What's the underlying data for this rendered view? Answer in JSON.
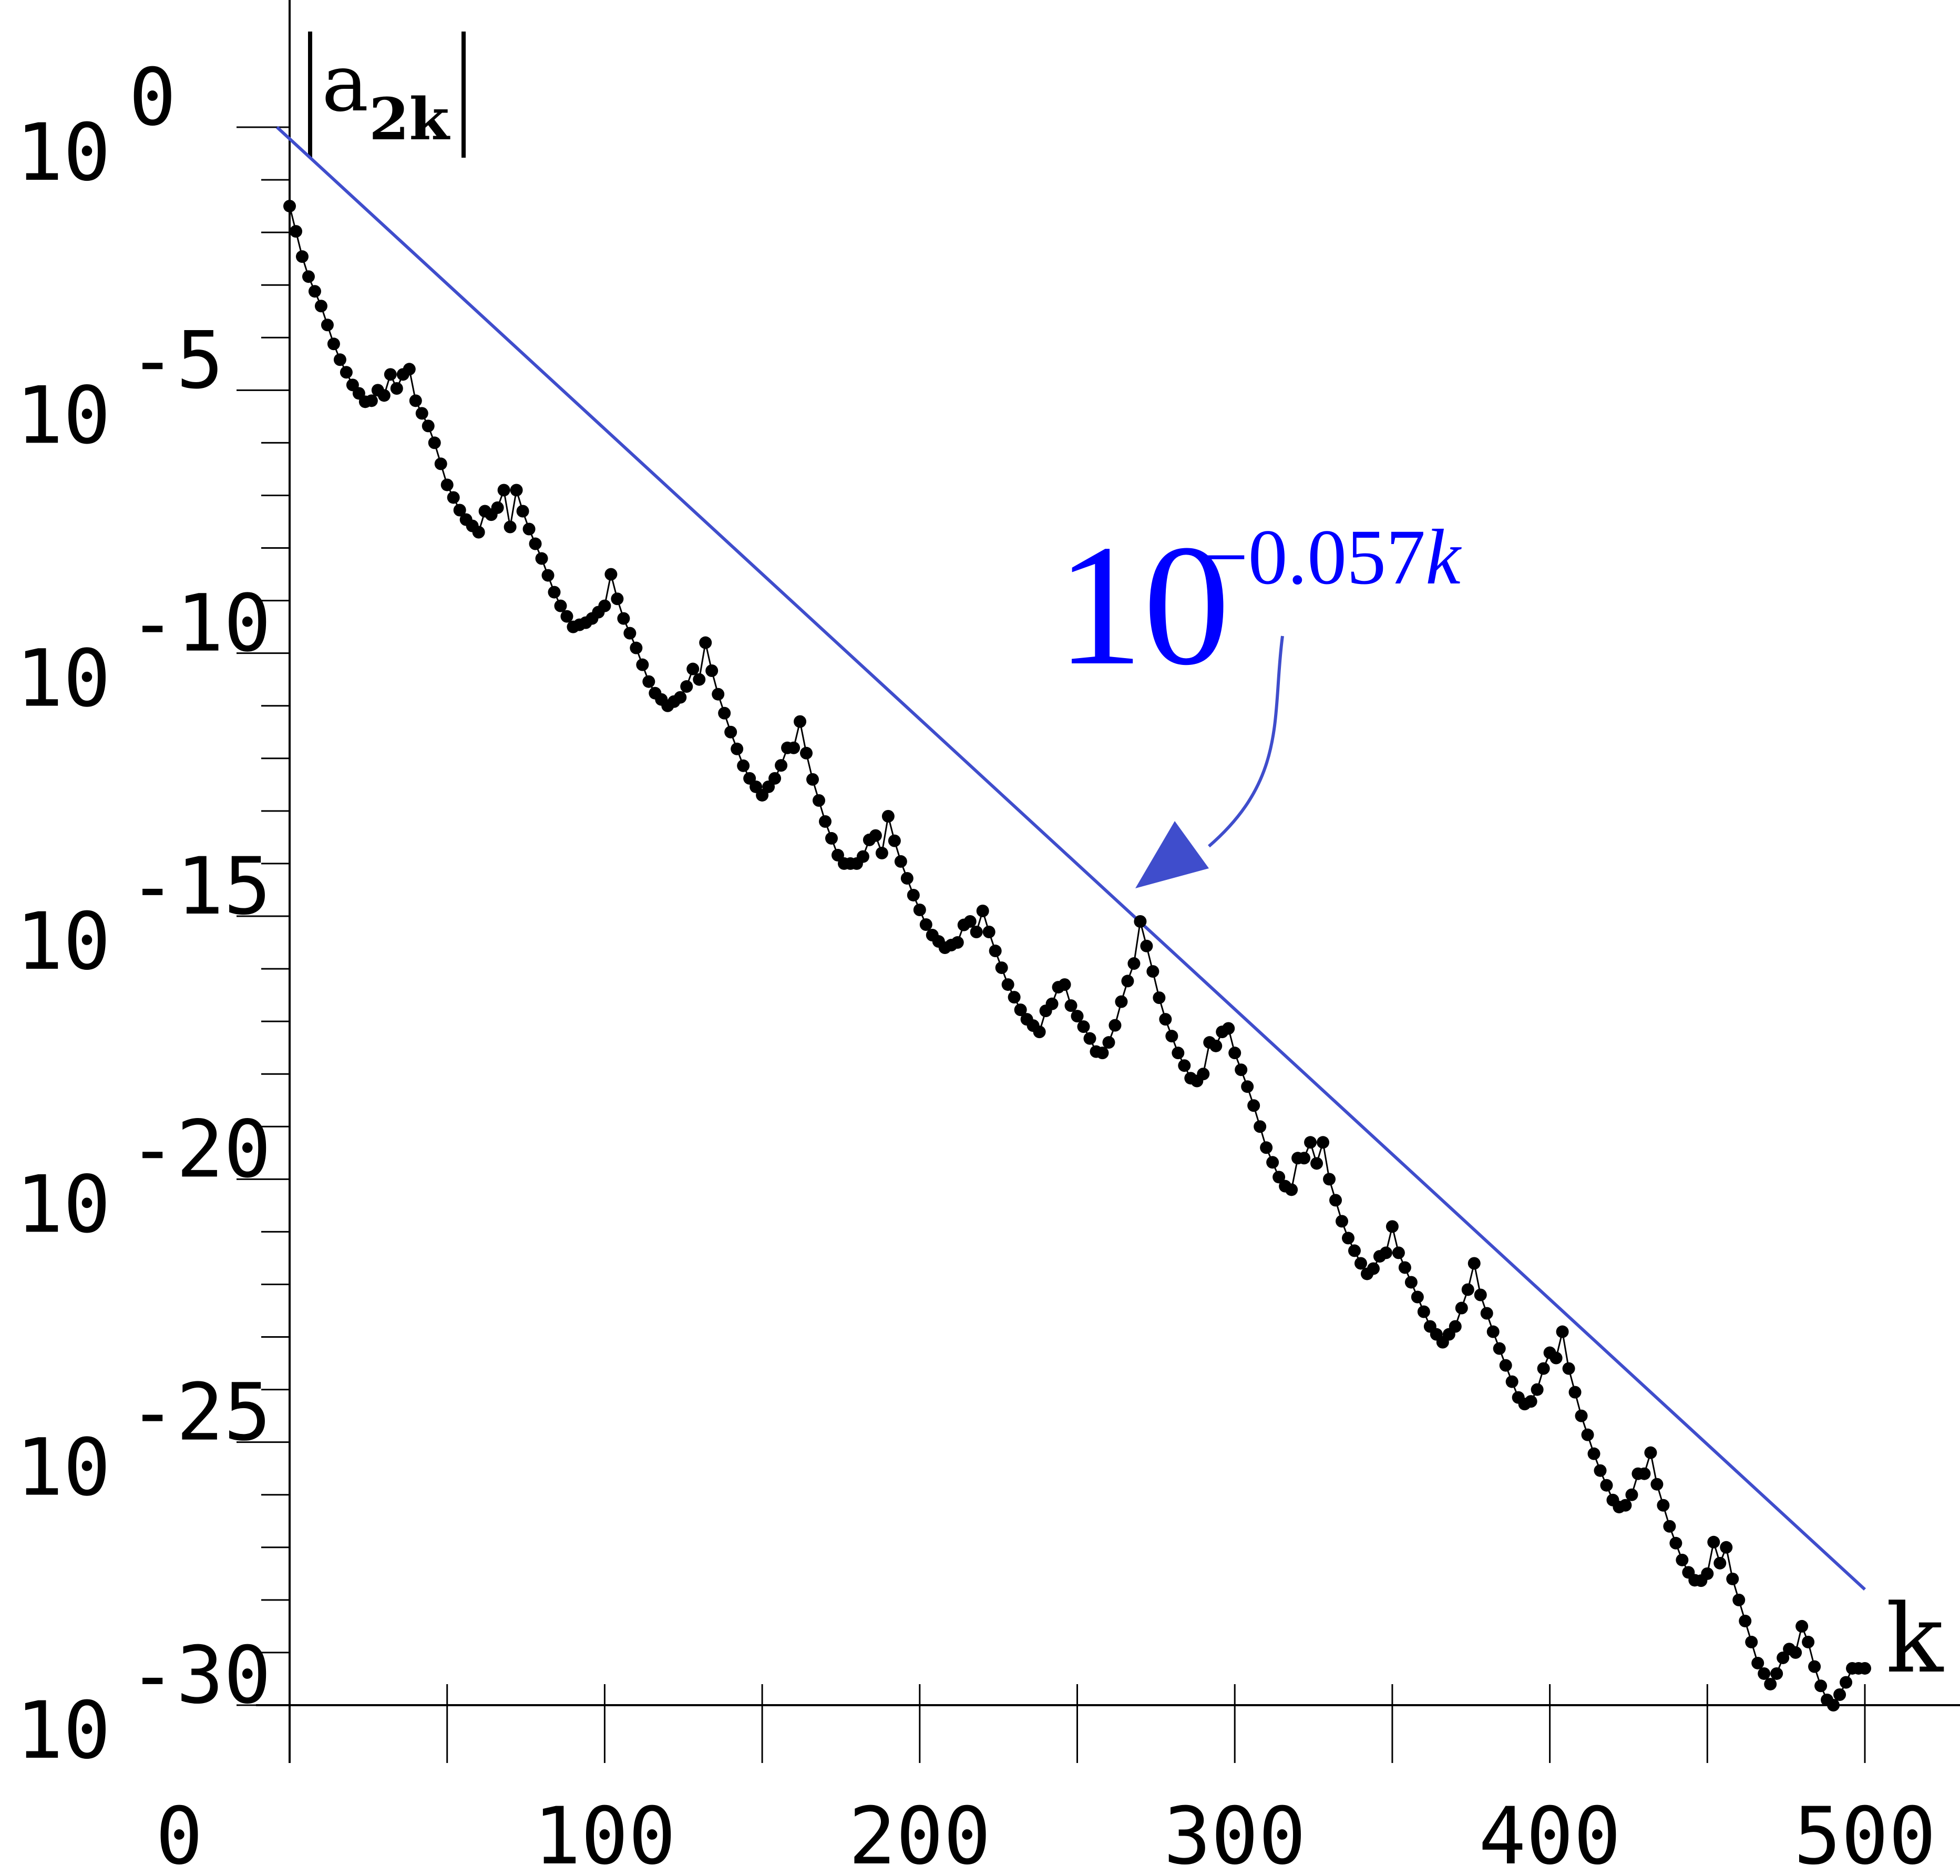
{
  "chart_data": {
    "type": "scatter",
    "title": "",
    "xlabel": "k",
    "ylabel": "|a",
    "ylabel_subscript": "2k",
    "ylabel_close": "|",
    "x_ticks": [
      "0",
      "100",
      "200",
      "300",
      "400",
      "500"
    ],
    "y_ticks": [
      {
        "base": "10",
        "exp": "0"
      },
      {
        "base": "10",
        "exp": "-5"
      },
      {
        "base": "10",
        "exp": "-10"
      },
      {
        "base": "10",
        "exp": "-15"
      },
      {
        "base": "10",
        "exp": "-20"
      },
      {
        "base": "10",
        "exp": "-25"
      },
      {
        "base": "10",
        "exp": "-30"
      }
    ],
    "xlim": [
      0,
      500
    ],
    "ylim_log10": [
      -30,
      0
    ],
    "y_scale": "log",
    "grid": false,
    "annotation": {
      "base": "10",
      "exponent": "−0.057",
      "variable": "k"
    },
    "series": [
      {
        "marker": "dot",
        "color": "#000000",
        "anchors": [
          [
            0,
            -1.5
          ],
          [
            5,
            -2.7
          ],
          [
            10,
            -3.4
          ],
          [
            15,
            -4.3
          ],
          [
            20,
            -4.9
          ],
          [
            25,
            -5.3
          ],
          [
            28,
            -5.0
          ],
          [
            30,
            -5.1
          ],
          [
            32,
            -4.7
          ],
          [
            35,
            -5.1
          ],
          [
            37,
            -4.3
          ],
          [
            40,
            -5.2
          ],
          [
            45,
            -5.8
          ],
          [
            50,
            -6.8
          ],
          [
            55,
            -7.4
          ],
          [
            60,
            -7.7
          ],
          [
            62,
            -7.3
          ],
          [
            65,
            -7.4
          ],
          [
            68,
            -6.9
          ],
          [
            70,
            -7.6
          ],
          [
            72,
            -6.9
          ],
          [
            75,
            -7.5
          ],
          [
            80,
            -8.2
          ],
          [
            85,
            -9.0
          ],
          [
            90,
            -9.5
          ],
          [
            95,
            -9.4
          ],
          [
            100,
            -9.1
          ],
          [
            102,
            -8.5
          ],
          [
            105,
            -9.2
          ],
          [
            110,
            -9.9
          ],
          [
            115,
            -10.7
          ],
          [
            120,
            -11.0
          ],
          [
            125,
            -10.8
          ],
          [
            128,
            -10.3
          ],
          [
            130,
            -10.5
          ],
          [
            132,
            -9.8
          ],
          [
            135,
            -10.6
          ],
          [
            140,
            -11.5
          ],
          [
            145,
            -12.3
          ],
          [
            150,
            -12.7
          ],
          [
            155,
            -12.3
          ],
          [
            158,
            -11.8
          ],
          [
            160,
            -11.8
          ],
          [
            162,
            -11.3
          ],
          [
            165,
            -12.2
          ],
          [
            170,
            -13.2
          ],
          [
            175,
            -14.0
          ],
          [
            180,
            -14.0
          ],
          [
            183,
            -13.8
          ],
          [
            185,
            -13.3
          ],
          [
            188,
            -13.8
          ],
          [
            190,
            -13.1
          ],
          [
            193,
            -13.8
          ],
          [
            198,
            -14.6
          ],
          [
            203,
            -15.3
          ],
          [
            208,
            -15.6
          ],
          [
            212,
            -15.5
          ],
          [
            215,
            -15.0
          ],
          [
            218,
            -15.3
          ],
          [
            220,
            -14.9
          ],
          [
            223,
            -15.5
          ],
          [
            228,
            -16.3
          ],
          [
            233,
            -16.9
          ],
          [
            238,
            -17.2
          ],
          [
            240,
            -16.8
          ],
          [
            243,
            -16.6
          ],
          [
            245,
            -16.1
          ],
          [
            248,
            -16.7
          ],
          [
            253,
            -17.2
          ],
          [
            257,
            -17.7
          ],
          [
            261,
            -17.3
          ],
          [
            265,
            -16.4
          ],
          [
            268,
            -15.9
          ],
          [
            270,
            -15.1
          ],
          [
            273,
            -15.8
          ],
          [
            277,
            -16.8
          ],
          [
            282,
            -17.6
          ],
          [
            287,
            -18.2
          ],
          [
            290,
            -18.0
          ],
          [
            292,
            -17.4
          ],
          [
            295,
            -17.5
          ],
          [
            297,
            -16.9
          ],
          [
            300,
            -17.6
          ],
          [
            305,
            -18.4
          ],
          [
            310,
            -19.4
          ],
          [
            315,
            -20.1
          ],
          [
            318,
            -20.2
          ],
          [
            320,
            -19.6
          ],
          [
            322,
            -19.6
          ],
          [
            324,
            -19.3
          ],
          [
            326,
            -19.7
          ],
          [
            328,
            -19.3
          ],
          [
            330,
            -20.0
          ],
          [
            335,
            -21.0
          ],
          [
            340,
            -21.6
          ],
          [
            343,
            -21.9
          ],
          [
            345,
            -21.5
          ],
          [
            348,
            -21.4
          ],
          [
            350,
            -20.9
          ],
          [
            352,
            -21.4
          ],
          [
            357,
            -22.1
          ],
          [
            362,
            -22.8
          ],
          [
            366,
            -23.1
          ],
          [
            370,
            -22.8
          ],
          [
            374,
            -22.1
          ],
          [
            376,
            -21.6
          ],
          [
            378,
            -22.2
          ],
          [
            382,
            -22.9
          ],
          [
            387,
            -23.7
          ],
          [
            391,
            -24.3
          ],
          [
            395,
            -24.2
          ],
          [
            398,
            -23.6
          ],
          [
            400,
            -23.3
          ],
          [
            402,
            -23.4
          ],
          [
            404,
            -22.9
          ],
          [
            406,
            -23.6
          ],
          [
            410,
            -24.5
          ],
          [
            415,
            -25.4
          ],
          [
            420,
            -26.1
          ],
          [
            423,
            -26.3
          ],
          [
            426,
            -26.0
          ],
          [
            428,
            -25.6
          ],
          [
            430,
            -25.6
          ],
          [
            432,
            -25.2
          ],
          [
            434,
            -25.8
          ],
          [
            438,
            -26.6
          ],
          [
            443,
            -27.4
          ],
          [
            447,
            -27.7
          ],
          [
            450,
            -27.5
          ],
          [
            452,
            -26.9
          ],
          [
            454,
            -27.3
          ],
          [
            456,
            -27.0
          ],
          [
            458,
            -27.6
          ],
          [
            462,
            -28.4
          ],
          [
            466,
            -29.2
          ],
          [
            470,
            -29.6
          ],
          [
            473,
            -29.3
          ],
          [
            475,
            -28.9
          ],
          [
            478,
            -29.0
          ],
          [
            480,
            -28.5
          ],
          [
            482,
            -28.8
          ],
          [
            485,
            -29.5
          ],
          [
            488,
            -29.9
          ],
          [
            490,
            -30.0
          ],
          [
            493,
            -29.7
          ],
          [
            496,
            -29.3
          ],
          [
            500,
            -29.3
          ]
        ]
      },
      {
        "kind": "line",
        "color": "#3f4dcc",
        "points": [
          [
            -4,
            0
          ],
          [
            500,
            -27.8
          ]
        ]
      }
    ]
  }
}
